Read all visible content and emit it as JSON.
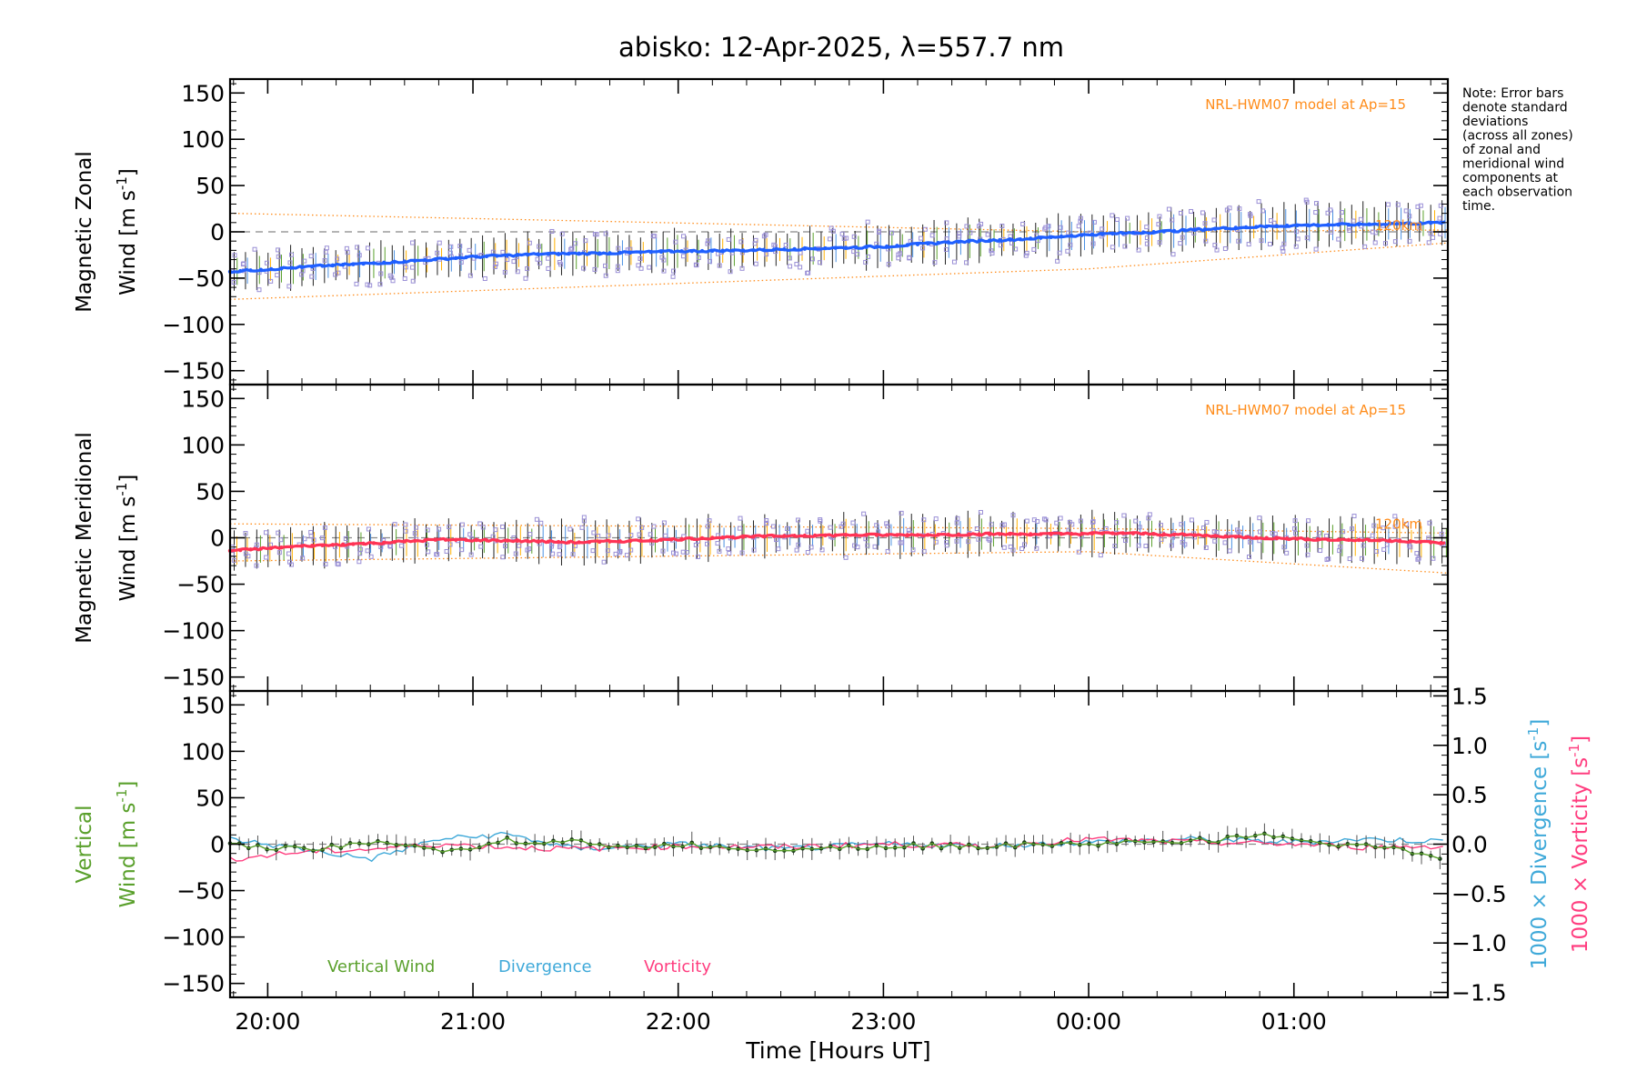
{
  "chart_data": {
    "title": "abisko: 12-Apr-2025, λ=557.7 nm",
    "type": "line",
    "x_axis": {
      "label": "Time [Hours UT]",
      "tick_labels": [
        "20:00",
        "21:00",
        "22:00",
        "23:00",
        "00:00",
        "01:00"
      ],
      "range_hours_ut": [
        "19:49",
        "01:45"
      ]
    },
    "note": [
      "Note: Error bars",
      "denote standard",
      "deviations",
      "(across all zones)",
      "of zonal and",
      "meridional wind",
      "components at",
      "each observation",
      "time."
    ],
    "panels": [
      {
        "id": "zonal",
        "ylabel_top": "Magnetic Zonal",
        "ylabel_bottom": "Wind [m s",
        "ylabel_sup": "-1",
        "ylabel_close": "]",
        "ylim": [
          -165,
          165
        ],
        "y_ticks": [
          150,
          100,
          50,
          0,
          -50,
          -100,
          -150
        ],
        "y_tick_labels": [
          "150",
          "100",
          "50",
          "0",
          "−50",
          "−100",
          "−150"
        ],
        "model_label": "NRL-HWM07 model at Ap=15",
        "model_side_label": "120km",
        "series": [
          {
            "name": "Magnetic Zonal Wind",
            "color": "#1f5fff",
            "t": [
              "19:49",
              "20:15",
              "20:40",
              "21:00",
              "21:20",
              "21:40",
              "22:00",
              "22:20",
              "22:40",
              "23:00",
              "23:20",
              "23:40",
              "00:00",
              "00:20",
              "00:40",
              "01:00",
              "01:20",
              "01:45"
            ],
            "values": [
              -43,
              -37,
              -32,
              -27,
              -24,
              -23,
              -21,
              -20,
              -18,
              -16,
              -11,
              -8,
              -3,
              0,
              4,
              7,
              8,
              10
            ]
          }
        ],
        "model_envelope": {
          "t": [
            "19:49",
            "00:00",
            "01:45"
          ],
          "upper": [
            20,
            0,
            2
          ],
          "lower": [
            -73,
            -40,
            -12
          ]
        }
      },
      {
        "id": "meridional",
        "ylabel_top": "Magnetic Meridional",
        "ylabel_bottom": "Wind [m s",
        "ylabel_sup": "-1",
        "ylabel_close": "]",
        "ylim": [
          -165,
          165
        ],
        "y_ticks": [
          150,
          100,
          50,
          0,
          -50,
          -100,
          -150
        ],
        "y_tick_labels": [
          "150",
          "100",
          "50",
          "0",
          "−50",
          "−100",
          "−150"
        ],
        "model_label": "NRL-HWM07 model at Ap=15",
        "model_side_label": "120km",
        "series": [
          {
            "name": "Magnetic Meridional Wind",
            "color": "#ff3355",
            "t": [
              "19:49",
              "20:10",
              "20:30",
              "20:50",
              "21:10",
              "21:30",
              "21:50",
              "22:10",
              "22:30",
              "22:50",
              "23:10",
              "23:30",
              "23:50",
              "00:10",
              "00:30",
              "00:50",
              "01:10",
              "01:30",
              "01:45"
            ],
            "values": [
              -14,
              -9,
              -6,
              -2,
              -3,
              -5,
              -3,
              0,
              2,
              3,
              3,
              4,
              4,
              5,
              3,
              0,
              -2,
              -3,
              -6
            ]
          }
        ],
        "model_envelope": {
          "t": [
            "19:49",
            "00:00",
            "01:45"
          ],
          "upper": [
            15,
            10,
            5
          ],
          "lower": [
            -25,
            -15,
            -38
          ]
        }
      },
      {
        "id": "vertical",
        "ylabel_top": "Vertical",
        "ylabel_bottom": "Wind [m s",
        "ylabel_sup": "-1",
        "ylabel_close": "]",
        "ylim": [
          -165,
          165
        ],
        "y_ticks": [
          150,
          100,
          50,
          0,
          -50,
          -100,
          -150
        ],
        "y_tick_labels": [
          "150",
          "100",
          "50",
          "0",
          "−50",
          "−100",
          "−150"
        ],
        "right_axis": {
          "ylim": [
            -1.55,
            1.55
          ],
          "ticks": [
            1.5,
            1.0,
            0.5,
            0.0,
            -0.5,
            -1.0,
            -1.5
          ],
          "tick_labels": [
            "1.5",
            "1.0",
            "0.5",
            "0.0",
            "−0.5",
            "−1.0",
            "−1.5"
          ],
          "label_div": "1000 × Divergence [s",
          "label_vor": "1000 × Vorticity [s",
          "label_sup": "-1",
          "label_close": "]"
        },
        "legend": [
          {
            "label": "Vertical Wind",
            "color": "#5aa02c"
          },
          {
            "label": "Divergence",
            "color": "#3fa9d9"
          },
          {
            "label": "Vorticity",
            "color": "#ff3d7f"
          }
        ],
        "series": [
          {
            "name": "Vertical Wind",
            "color": "#000000",
            "t": [
              "19:49",
              "20:00",
              "20:15",
              "20:30",
              "20:45",
              "21:00",
              "21:10",
              "21:20",
              "21:30",
              "21:40",
              "21:50",
              "22:00",
              "22:20",
              "22:40",
              "23:00",
              "23:20",
              "23:40",
              "00:00",
              "00:20",
              "00:40",
              "00:55",
              "01:10",
              "01:25",
              "01:45"
            ],
            "values": [
              0,
              -3,
              -5,
              2,
              -4,
              -8,
              5,
              -2,
              8,
              -5,
              -3,
              0,
              -5,
              -4,
              -2,
              -2,
              -1,
              0,
              3,
              5,
              10,
              0,
              -3,
              -15
            ]
          },
          {
            "name": "Divergence",
            "color": "#3fa9d9",
            "t": [
              "19:49",
              "20:10",
              "20:30",
              "20:50",
              "21:10",
              "21:30",
              "22:00",
              "22:30",
              "23:00",
              "23:30",
              "00:00",
              "00:30",
              "01:00",
              "01:20",
              "01:45"
            ],
            "values": [
              0.05,
              -0.05,
              -0.15,
              0.05,
              0.1,
              -0.05,
              0.0,
              -0.05,
              0.0,
              -0.02,
              0.02,
              0.05,
              0.02,
              0.05,
              0.03
            ]
          },
          {
            "name": "Vorticity",
            "color": "#ff3d7f",
            "t": [
              "19:49",
              "20:10",
              "20:30",
              "20:50",
              "21:10",
              "21:30",
              "22:00",
              "22:30",
              "23:00",
              "23:30",
              "00:00",
              "00:30",
              "01:00",
              "01:20",
              "01:45"
            ],
            "values": [
              -0.15,
              -0.08,
              -0.05,
              0.0,
              -0.03,
              -0.05,
              -0.02,
              -0.03,
              0.0,
              -0.02,
              0.05,
              0.02,
              0.0,
              -0.03,
              -0.02
            ]
          }
        ]
      }
    ]
  }
}
